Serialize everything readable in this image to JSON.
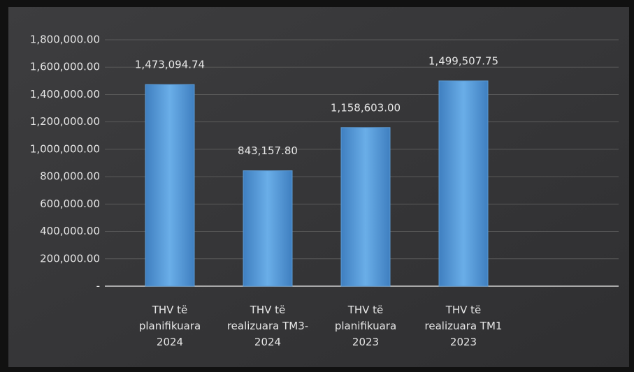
{
  "chart_data": {
    "type": "bar",
    "categories": [
      "THV të\nplanifikuara\n2024",
      "THV të\nrealizuara TM3-\n2024",
      "THV të\nplanifikuara\n2023",
      "THV të\nrealizuara TM1\n2023"
    ],
    "values": [
      1473094.74,
      843157.8,
      1158603,
      1499507.75
    ],
    "value_labels": [
      "1,473,094.74",
      "843,157.80",
      "1,158,603.00",
      "1,499,507.75"
    ],
    "color": "#5b9bd5",
    "ylim": [
      0,
      1800000
    ],
    "yticks": [
      {
        "value": 0,
        "label": "-"
      },
      {
        "value": 200000,
        "label": "200,000.00"
      },
      {
        "value": 400000,
        "label": "400,000.00"
      },
      {
        "value": 600000,
        "label": "600,000.00"
      },
      {
        "value": 800000,
        "label": "800,000.00"
      },
      {
        "value": 1000000,
        "label": "1,000,000.00"
      },
      {
        "value": 1200000,
        "label": "1,200,000.00"
      },
      {
        "value": 1400000,
        "label": "1,400,000.00"
      },
      {
        "value": 1600000,
        "label": "1,600,000.00"
      },
      {
        "value": 1800000,
        "label": "1,800,000.00"
      }
    ],
    "grid": true
  }
}
